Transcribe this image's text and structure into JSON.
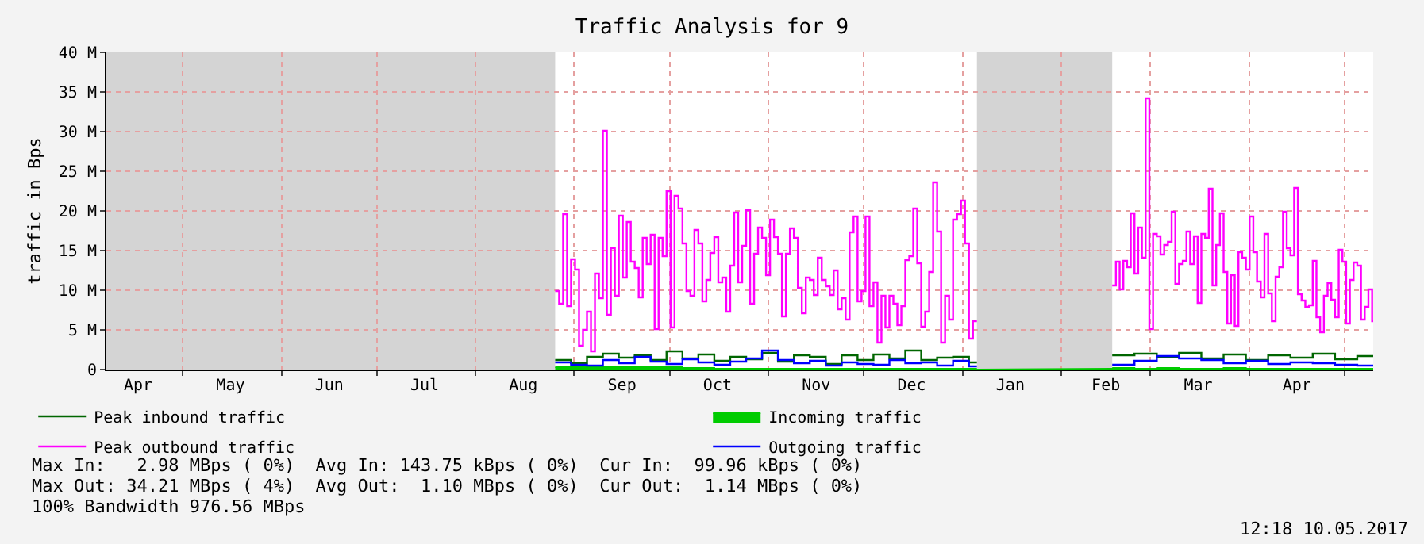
{
  "chart_data": {
    "type": "step",
    "title": "Traffic Analysis for 9",
    "ylabel": "traffic in Bps",
    "xlim": [
      "2016-04-07",
      "2017-05-10"
    ],
    "xticks": [
      {
        "value": "2016-04-17",
        "label": "Apr"
      },
      {
        "value": "2016-05-16",
        "label": "May"
      },
      {
        "value": "2016-06-16",
        "label": "Jun"
      },
      {
        "value": "2016-07-16",
        "label": "Jul"
      },
      {
        "value": "2016-08-16",
        "label": "Aug"
      },
      {
        "value": "2016-09-16",
        "label": "Sep"
      },
      {
        "value": "2016-10-16",
        "label": "Oct"
      },
      {
        "value": "2016-11-16",
        "label": "Nov"
      },
      {
        "value": "2016-12-16",
        "label": "Dec"
      },
      {
        "value": "2017-01-16",
        "label": "Jan"
      },
      {
        "value": "2017-02-15",
        "label": "Feb"
      },
      {
        "value": "2017-03-16",
        "label": "Mar"
      },
      {
        "value": "2017-04-16",
        "label": "Apr"
      },
      {
        "value": "2016-05-01",
        "label": null
      },
      {
        "value": "2016-06-01",
        "label": null
      },
      {
        "value": "2016-07-01",
        "label": null
      },
      {
        "value": "2016-08-01",
        "label": null
      },
      {
        "value": "2016-09-01",
        "label": null
      },
      {
        "value": "2016-10-01",
        "label": null
      },
      {
        "value": "2016-11-01",
        "label": null
      },
      {
        "value": "2016-12-01",
        "label": null
      },
      {
        "value": "2017-01-01",
        "label": null
      },
      {
        "value": "2017-02-01",
        "label": null
      },
      {
        "value": "2017-03-01",
        "label": null
      },
      {
        "value": "2017-04-01",
        "label": null
      },
      {
        "value": "2017-05-01",
        "label": null
      }
    ],
    "ylim": [
      0,
      40
    ],
    "yticks": [
      0,
      {
        "value": 5,
        "label": "5 M"
      },
      {
        "value": 10,
        "label": "10 M"
      },
      {
        "value": 15,
        "label": "15 M"
      },
      {
        "value": 20,
        "label": "20 M"
      },
      {
        "value": 25,
        "label": "25 M"
      },
      {
        "value": 30,
        "label": "30 M"
      },
      {
        "value": 35,
        "label": "35 M"
      },
      {
        "value": 40,
        "label": "40 M"
      }
    ],
    "grid": true,
    "legend": "bottom left",
    "marker": "none",
    "line_style": "solid",
    "bands": [
      {
        "axis": "x",
        "from": "2016-04-07",
        "to": "2016-08-26",
        "color": "#d4d4d4"
      },
      {
        "axis": "x",
        "from": "2017-01-05T12:00",
        "to": "2017-02-17",
        "color": "#d4d4d4"
      }
    ],
    "x": [
      "2016-08-26T00:00",
      "2016-08-27T06:00",
      "2016-08-28T12:00",
      "2016-08-29T18:00",
      "2016-08-31T00:00",
      "2016-09-01T06:00",
      "2016-09-02T12:00",
      "2016-09-03T18:00",
      "2016-09-05T00:00",
      "2016-09-06T06:00",
      "2016-09-07T12:00",
      "2016-09-08T18:00",
      "2016-09-10T00:00",
      "2016-09-11T06:00",
      "2016-09-12T12:00",
      "2016-09-13T18:00",
      "2016-09-15T00:00",
      "2016-09-16T06:00",
      "2016-09-17T12:00",
      "2016-09-18T18:00",
      "2016-09-20T00:00",
      "2016-09-21T06:00",
      "2016-09-22T12:00",
      "2016-09-23T18:00",
      "2016-09-25T00:00",
      "2016-09-26T06:00",
      "2016-09-27T12:00",
      "2016-09-28T18:00",
      "2016-09-30T00:00",
      "2016-10-01T06:00",
      "2016-10-02T12:00",
      "2016-10-03T18:00",
      "2016-10-05T00:00",
      "2016-10-06T06:00",
      "2016-10-07T12:00",
      "2016-10-08T18:00",
      "2016-10-10T00:00",
      "2016-10-11T06:00",
      "2016-10-12T12:00",
      "2016-10-13T18:00",
      "2016-10-15T00:00",
      "2016-10-16T06:00",
      "2016-10-17T12:00",
      "2016-10-18T18:00",
      "2016-10-20T00:00",
      "2016-10-21T06:00",
      "2016-10-22T12:00",
      "2016-10-23T18:00",
      "2016-10-25T00:00",
      "2016-10-26T06:00",
      "2016-10-27T12:00",
      "2016-10-28T18:00",
      "2016-10-30T00:00",
      "2016-10-31T06:00",
      "2016-11-01T12:00",
      "2016-11-02T18:00",
      "2016-11-04T00:00",
      "2016-11-05T06:00",
      "2016-11-06T12:00",
      "2016-11-07T18:00",
      "2016-11-09T00:00",
      "2016-11-10T06:00",
      "2016-11-11T12:00",
      "2016-11-12T18:00",
      "2016-11-14T00:00",
      "2016-11-15T06:00",
      "2016-11-16T12:00",
      "2016-11-17T18:00",
      "2016-11-19T00:00",
      "2016-11-20T06:00",
      "2016-11-21T12:00",
      "2016-11-22T18:00",
      "2016-11-24T00:00",
      "2016-11-25T06:00",
      "2016-11-26T12:00",
      "2016-11-27T18:00",
      "2016-11-29T00:00",
      "2016-11-30T06:00",
      "2016-12-01T12:00",
      "2016-12-02T18:00",
      "2016-12-04T00:00",
      "2016-12-05T06:00",
      "2016-12-06T12:00",
      "2016-12-07T18:00",
      "2016-12-09T00:00",
      "2016-12-10T06:00",
      "2016-12-11T12:00",
      "2016-12-12T18:00",
      "2016-12-14T00:00",
      "2016-12-15T06:00",
      "2016-12-16T12:00",
      "2016-12-17T18:00",
      "2016-12-19T00:00",
      "2016-12-20T06:00",
      "2016-12-21T12:00",
      "2016-12-22T18:00",
      "2016-12-24T00:00",
      "2016-12-25T06:00",
      "2016-12-26T12:00",
      "2016-12-27T18:00",
      "2016-12-29T00:00",
      "2016-12-30T06:00",
      "2016-12-31T12:00",
      "2017-01-01T18:00",
      "2017-01-03T00:00",
      "2017-01-04T06:00",
      "2017-01-05T12:00",
      "2017-01-20T00:00",
      "2017-02-17T00:00",
      "2017-02-18T04:00",
      "2017-02-19T08:00",
      "2017-02-20T12:00",
      "2017-02-21T16:00",
      "2017-02-22T20:00",
      "2017-02-24T00:00",
      "2017-02-25T04:00",
      "2017-02-26T08:00",
      "2017-02-27T12:00",
      "2017-02-28T16:00",
      "2017-03-01T20:00",
      "2017-03-03T00:00",
      "2017-03-04T04:00",
      "2017-03-05T08:00",
      "2017-03-06T12:00",
      "2017-03-07T16:00",
      "2017-03-08T20:00",
      "2017-03-10T00:00",
      "2017-03-11T04:00",
      "2017-03-12T08:00",
      "2017-03-13T12:00",
      "2017-03-14T16:00",
      "2017-03-15T20:00",
      "2017-03-17T00:00",
      "2017-03-18T04:00",
      "2017-03-19T08:00",
      "2017-03-20T12:00",
      "2017-03-21T16:00",
      "2017-03-22T20:00",
      "2017-03-24T00:00",
      "2017-03-25T04:00",
      "2017-03-26T08:00",
      "2017-03-27T12:00",
      "2017-03-28T16:00",
      "2017-03-29T20:00",
      "2017-03-31T00:00",
      "2017-04-01T04:00",
      "2017-04-02T08:00",
      "2017-04-03T12:00",
      "2017-04-04T16:00",
      "2017-04-05T20:00",
      "2017-04-07T00:00",
      "2017-04-08T04:00",
      "2017-04-09T08:00",
      "2017-04-10T12:00",
      "2017-04-11T16:00",
      "2017-04-12T20:00",
      "2017-04-14T00:00",
      "2017-04-15T04:00",
      "2017-04-16T08:00",
      "2017-04-17T12:00",
      "2017-04-18T16:00",
      "2017-04-19T20:00",
      "2017-04-21T00:00",
      "2017-04-22T04:00",
      "2017-04-23T08:00",
      "2017-04-24T12:00",
      "2017-04-25T16:00",
      "2017-04-26T20:00",
      "2017-04-28T00:00",
      "2017-04-29T04:00",
      "2017-04-30T08:00",
      "2017-05-01T12:00",
      "2017-05-02T16:00",
      "2017-05-03T20:00",
      "2017-05-05T00:00",
      "2017-05-06T04:00",
      "2017-05-07T08:00",
      "2017-05-08T12:00",
      "2017-05-09T16:00",
      "2017-05-10T00:00"
    ],
    "series": [
      {
        "name": "Peak inbound traffic",
        "color": "#006600",
        "x": [
          "2016-08-26",
          "2016-08-31",
          "2016-09-05",
          "2016-09-10",
          "2016-09-15",
          "2016-09-20",
          "2016-09-25",
          "2016-09-30",
          "2016-10-05",
          "2016-10-10",
          "2016-10-15",
          "2016-10-20",
          "2016-10-25",
          "2016-10-30",
          "2016-11-04",
          "2016-11-09",
          "2016-11-14",
          "2016-11-19",
          "2016-11-24",
          "2016-11-29",
          "2016-12-04",
          "2016-12-09",
          "2016-12-14",
          "2016-12-19",
          "2016-12-24",
          "2016-12-29",
          "2017-01-03",
          "2017-01-05T12:00",
          "2017-01-20",
          "2017-02-17",
          "2017-02-24",
          "2017-03-03",
          "2017-03-10",
          "2017-03-17",
          "2017-03-24",
          "2017-03-31",
          "2017-04-07",
          "2017-04-14",
          "2017-04-21",
          "2017-04-28",
          "2017-05-05",
          "2017-05-10"
        ],
        "values": [
          1.2,
          0.8,
          1.6,
          2.0,
          1.5,
          1.8,
          1.2,
          2.3,
          1.4,
          1.9,
          1.1,
          1.6,
          1.3,
          2.1,
          1.0,
          1.8,
          1.6,
          0.7,
          1.8,
          1.2,
          1.9,
          1.4,
          2.4,
          1.2,
          1.5,
          1.6,
          0.9,
          0.9,
          null,
          1.8,
          2.0,
          1.6,
          2.1,
          1.4,
          1.9,
          1.2,
          1.8,
          1.5,
          2.0,
          1.3,
          1.7,
          1.7
        ]
      },
      {
        "name": "Incoming traffic",
        "type": "area",
        "color": "#00cc00",
        "x": [
          "2016-08-26",
          "2016-08-31",
          "2016-09-05",
          "2016-09-10",
          "2016-09-15",
          "2016-09-20",
          "2016-09-25",
          "2016-09-30",
          "2016-10-05",
          "2016-10-10",
          "2016-10-15",
          "2016-10-20",
          "2016-10-25",
          "2016-10-30",
          "2016-11-04",
          "2016-11-09",
          "2016-11-14",
          "2016-11-19",
          "2016-11-24",
          "2016-11-29",
          "2016-12-04",
          "2016-12-09",
          "2016-12-14",
          "2016-12-19",
          "2016-12-24",
          "2016-12-29",
          "2017-01-03",
          "2017-01-05T12:00",
          "2017-01-20",
          "2017-02-17",
          "2017-02-24",
          "2017-03-03",
          "2017-03-10",
          "2017-03-17",
          "2017-03-24",
          "2017-03-31",
          "2017-04-07",
          "2017-04-14",
          "2017-04-21",
          "2017-04-28",
          "2017-05-05",
          "2017-05-10"
        ],
        "values": [
          0.3,
          0.4,
          0.3,
          0.4,
          0.3,
          0.4,
          0.3,
          0.3,
          0.2,
          0.2,
          0.1,
          0.1,
          0.1,
          0.1,
          0.1,
          0.1,
          0.1,
          0.1,
          0.1,
          0.1,
          0.1,
          0.1,
          0.1,
          0.1,
          0.1,
          0.1,
          0.1,
          0.1,
          null,
          0.2,
          0.1,
          0.2,
          0.1,
          0.1,
          0.2,
          0.1,
          0.1,
          0.1,
          0.1,
          0.1,
          0.1,
          0.1
        ]
      },
      {
        "name": "Peak outbound traffic",
        "color": "#ff00ff",
        "values": [
          9.9,
          8.3,
          19.6,
          8.0,
          13.9,
          12.6,
          3.0,
          5.0,
          7.3,
          2.3,
          12.1,
          9.0,
          30.1,
          6.9,
          15.3,
          9.3,
          19.4,
          11.6,
          18.6,
          13.6,
          12.8,
          9.1,
          16.6,
          13.3,
          17.0,
          5.1,
          16.6,
          14.3,
          22.5,
          5.3,
          21.9,
          20.3,
          15.9,
          9.9,
          9.3,
          17.6,
          15.9,
          8.6,
          11.3,
          14.7,
          16.7,
          11.0,
          11.6,
          7.3,
          13.1,
          19.8,
          11.0,
          15.6,
          20.1,
          8.3,
          14.6,
          17.9,
          16.6,
          11.9,
          18.9,
          16.7,
          14.6,
          6.7,
          14.6,
          17.8,
          16.6,
          10.3,
          7.1,
          11.6,
          11.3,
          9.4,
          14.1,
          11.3,
          10.5,
          9.4,
          12.5,
          7.6,
          9.0,
          6.3,
          17.3,
          19.3,
          8.6,
          9.9,
          19.3,
          8.0,
          11.0,
          3.4,
          9.3,
          5.3,
          9.3,
          8.3,
          5.6,
          8.0,
          13.8,
          14.3,
          20.3,
          13.4,
          5.4,
          7.3,
          12.3,
          23.6,
          17.4,
          3.4,
          9.3,
          6.3,
          18.9,
          19.6,
          21.3,
          15.9,
          3.9,
          6.1,
          6.1,
          null,
          10.6,
          13.6,
          10.1,
          13.7,
          12.9,
          19.7,
          12.1,
          17.9,
          14.1,
          34.2,
          5.1,
          17.1,
          16.8,
          14.5,
          15.7,
          16.1,
          19.9,
          10.8,
          13.3,
          13.7,
          17.4,
          13.3,
          16.8,
          8.4,
          17.1,
          16.6,
          22.8,
          10.6,
          15.7,
          19.7,
          12.3,
          5.8,
          11.9,
          5.5,
          14.8,
          14.1,
          12.6,
          19.3,
          14.8,
          11.1,
          9.1,
          17.1,
          9.6,
          6.1,
          11.7,
          12.9,
          19.9,
          15.3,
          14.4,
          22.9,
          9.5,
          8.7,
          7.9,
          8.1,
          13.7,
          6.6,
          4.7,
          9.3,
          10.9,
          8.8,
          6.6,
          15.1,
          13.6,
          5.8,
          11.3,
          13.5,
          13.1,
          6.3,
          7.9,
          10.1,
          6.1,
          6.1
        ]
      },
      {
        "name": "Outgoing traffic",
        "color": "#0000ff",
        "x": [
          "2016-08-26",
          "2016-08-31",
          "2016-09-05",
          "2016-09-10",
          "2016-09-15",
          "2016-09-20",
          "2016-09-25",
          "2016-09-30",
          "2016-10-05",
          "2016-10-10",
          "2016-10-15",
          "2016-10-20",
          "2016-10-25",
          "2016-10-30",
          "2016-11-04",
          "2016-11-09",
          "2016-11-14",
          "2016-11-19",
          "2016-11-24",
          "2016-11-29",
          "2016-12-04",
          "2016-12-09",
          "2016-12-14",
          "2016-12-19",
          "2016-12-24",
          "2016-12-29",
          "2017-01-03",
          "2017-01-05T12:00",
          "2017-01-20",
          "2017-02-17",
          "2017-02-24",
          "2017-03-03",
          "2017-03-10",
          "2017-03-17",
          "2017-03-24",
          "2017-03-31",
          "2017-04-07",
          "2017-04-14",
          "2017-04-21",
          "2017-04-28",
          "2017-05-05",
          "2017-05-10"
        ],
        "values": [
          0.9,
          0.6,
          0.5,
          1.2,
          0.8,
          1.6,
          1.0,
          0.7,
          1.3,
          0.9,
          0.6,
          1.0,
          1.4,
          2.4,
          1.2,
          0.8,
          1.1,
          0.5,
          0.9,
          0.7,
          0.6,
          1.2,
          0.8,
          0.9,
          0.5,
          1.1,
          0.4,
          0.4,
          null,
          0.6,
          1.1,
          1.7,
          1.4,
          1.2,
          0.8,
          1.1,
          0.7,
          0.9,
          0.8,
          0.6,
          0.5,
          0.5
        ]
      }
    ],
    "annotations": [
      "Max In:   2.98 MBps ( 0%)  Avg In: 143.75 kBps ( 0%)  Cur In:  99.96 kBps ( 0%)",
      "Max Out: 34.21 MBps ( 4%)  Avg Out:  1.10 MBps ( 0%)  Cur Out:  1.14 MBps ( 0%)",
      "100% Bandwidth 976.56 MBps",
      "12:18 10.05.2017"
    ]
  }
}
